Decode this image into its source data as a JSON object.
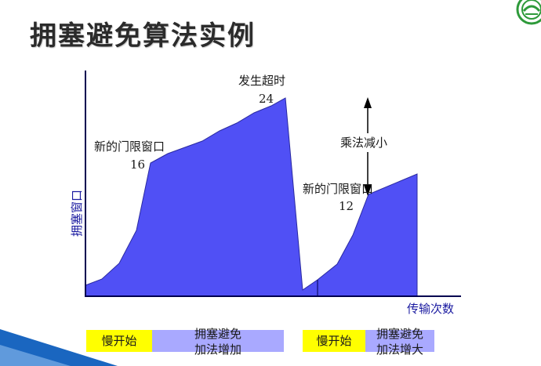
{
  "title": "拥塞避免算法实例",
  "colors": {
    "area_fill": "#5050f5",
    "slow_start_box": "#ffff00",
    "congestion_avoidance_box": "#a9a9ff",
    "axis": "#000050",
    "logo_green": "#2e9a3a"
  },
  "axes": {
    "y_label": "拥塞窗口",
    "x_label": "传输次数"
  },
  "annotations": {
    "timeout_label": "发生超时",
    "timeout_value": "24",
    "threshold1_label": "新的门限窗口",
    "threshold1_value": "16",
    "multiplicative_label": "乘法减小",
    "threshold2_label": "新的门限窗口",
    "threshold2_value": "12"
  },
  "stages": [
    {
      "label": "慢开始"
    },
    {
      "label_line1": "拥塞避免",
      "label_line2": "加法增加"
    },
    {
      "label": "慢开始"
    },
    {
      "label_line1": "拥塞避免",
      "label_line2": "加法增大"
    }
  ],
  "logo_icon": "university-seal-icon"
}
